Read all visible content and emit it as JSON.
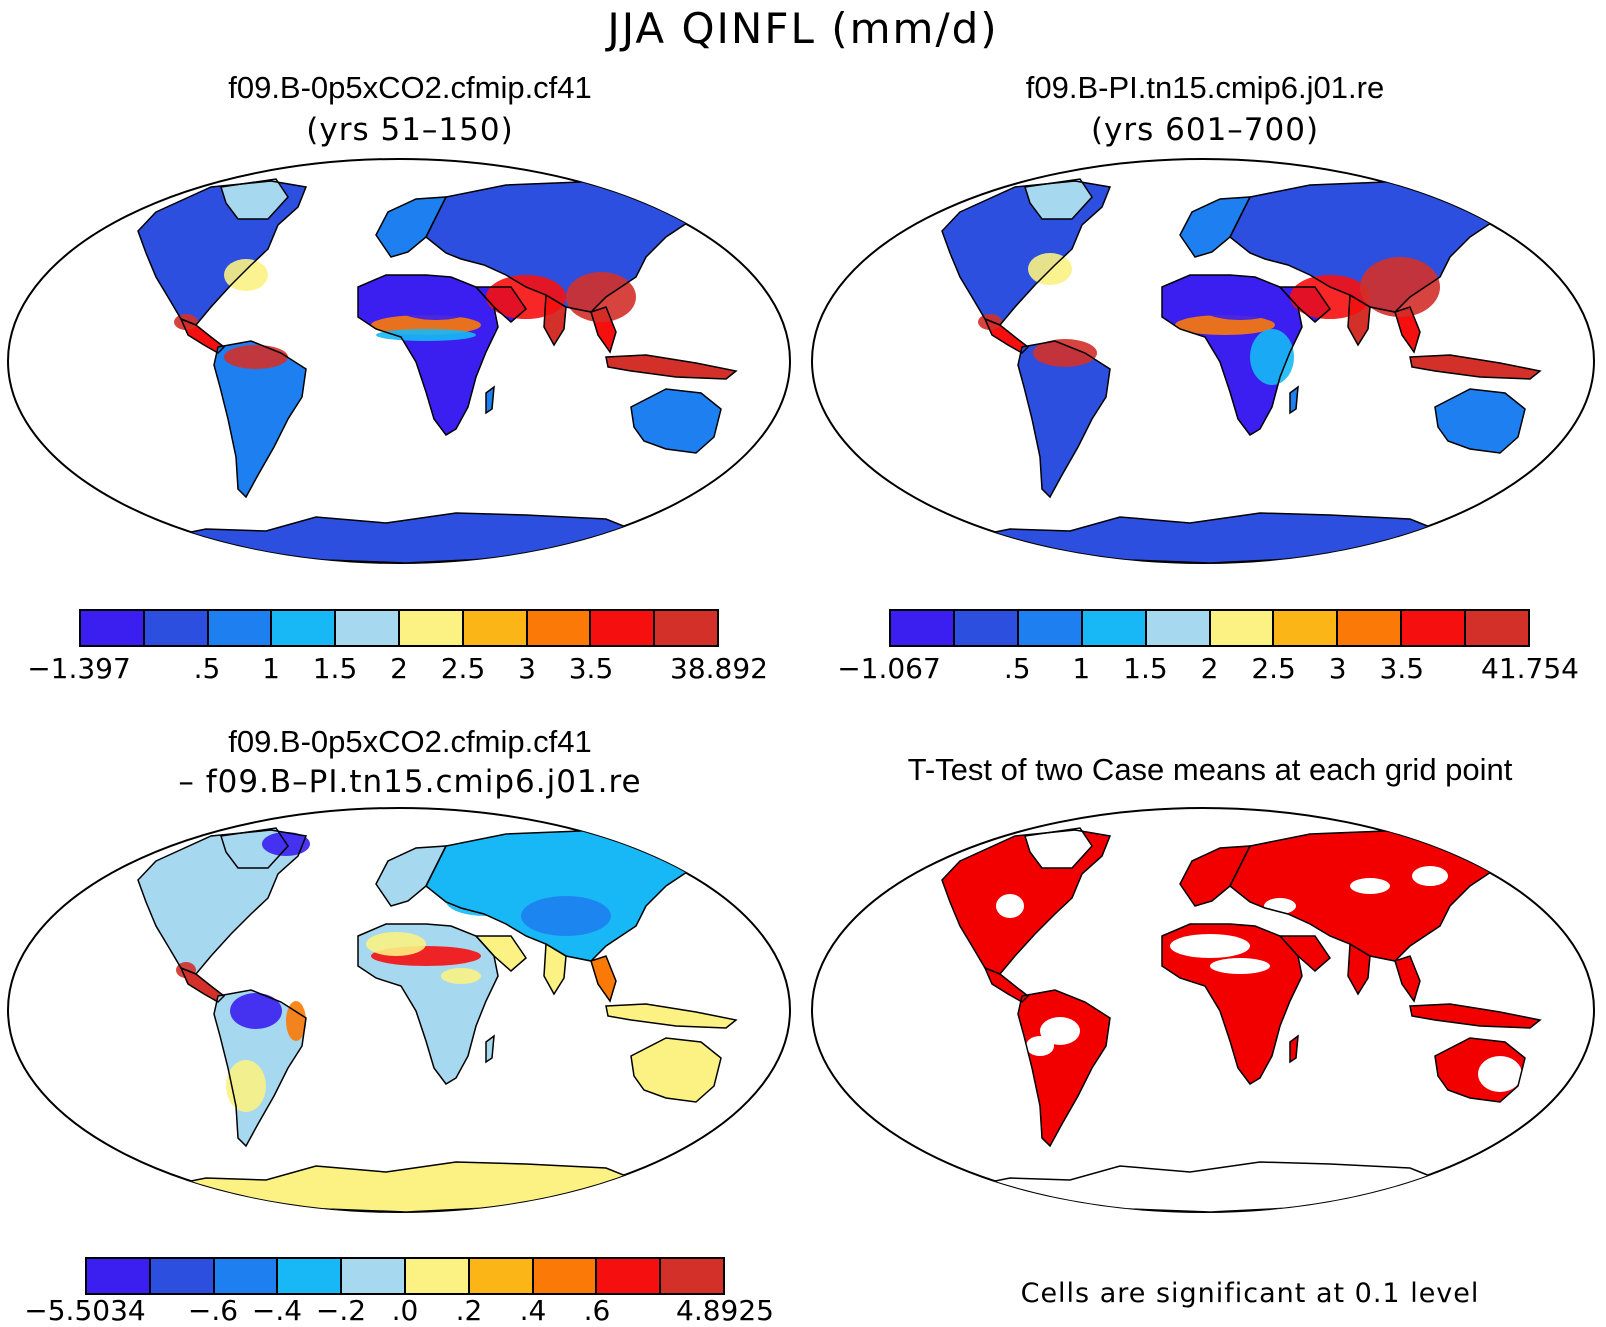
{
  "figure": {
    "title": "JJA QINFL (mm/d)"
  },
  "colors": {
    "palette": [
      "#3b1ff0",
      "#2d4fe0",
      "#1e7ff0",
      "#17b8f5",
      "#a6d8f0",
      "#fbf283",
      "#fbb517",
      "#fb7a07",
      "#f60f0f",
      "#d3302a"
    ],
    "significant": "#f20000",
    "land_outline": "#000000",
    "ocean": "#ffffff"
  },
  "panels": [
    {
      "id": "case1",
      "title": "f09.B-0p5xCO2.cfmip.cf41",
      "subtitle": "(yrs 51–150)",
      "colorbar_ticks": [
        "−1.397",
        ".5",
        "1",
        "1.5",
        "2",
        "2.5",
        "3",
        "3.5",
        "38.892"
      ],
      "fill": "mixed"
    },
    {
      "id": "case2",
      "title": "f09.B-PI.tn15.cmip6.j01.re",
      "subtitle": "(yrs 601–700)",
      "colorbar_ticks": [
        "−1.067",
        ".5",
        "1",
        "1.5",
        "2",
        "2.5",
        "3",
        "3.5",
        "41.754"
      ],
      "fill": "mixed"
    },
    {
      "id": "diff",
      "title": "f09.B-0p5xCO2.cfmip.cf41",
      "subtitle": "– f09.B–PI.tn15.cmip6.j01.re",
      "colorbar_ticks": [
        "−5.5034",
        "−.6",
        "−.4",
        "−.2",
        ".0",
        ".2",
        ".4",
        ".6",
        "4.8925"
      ],
      "fill": "diff"
    },
    {
      "id": "ttest",
      "title": "T-Test of two Case means at each grid point",
      "note": "Cells are significant at 0.1 level",
      "fill": "significance"
    }
  ]
}
